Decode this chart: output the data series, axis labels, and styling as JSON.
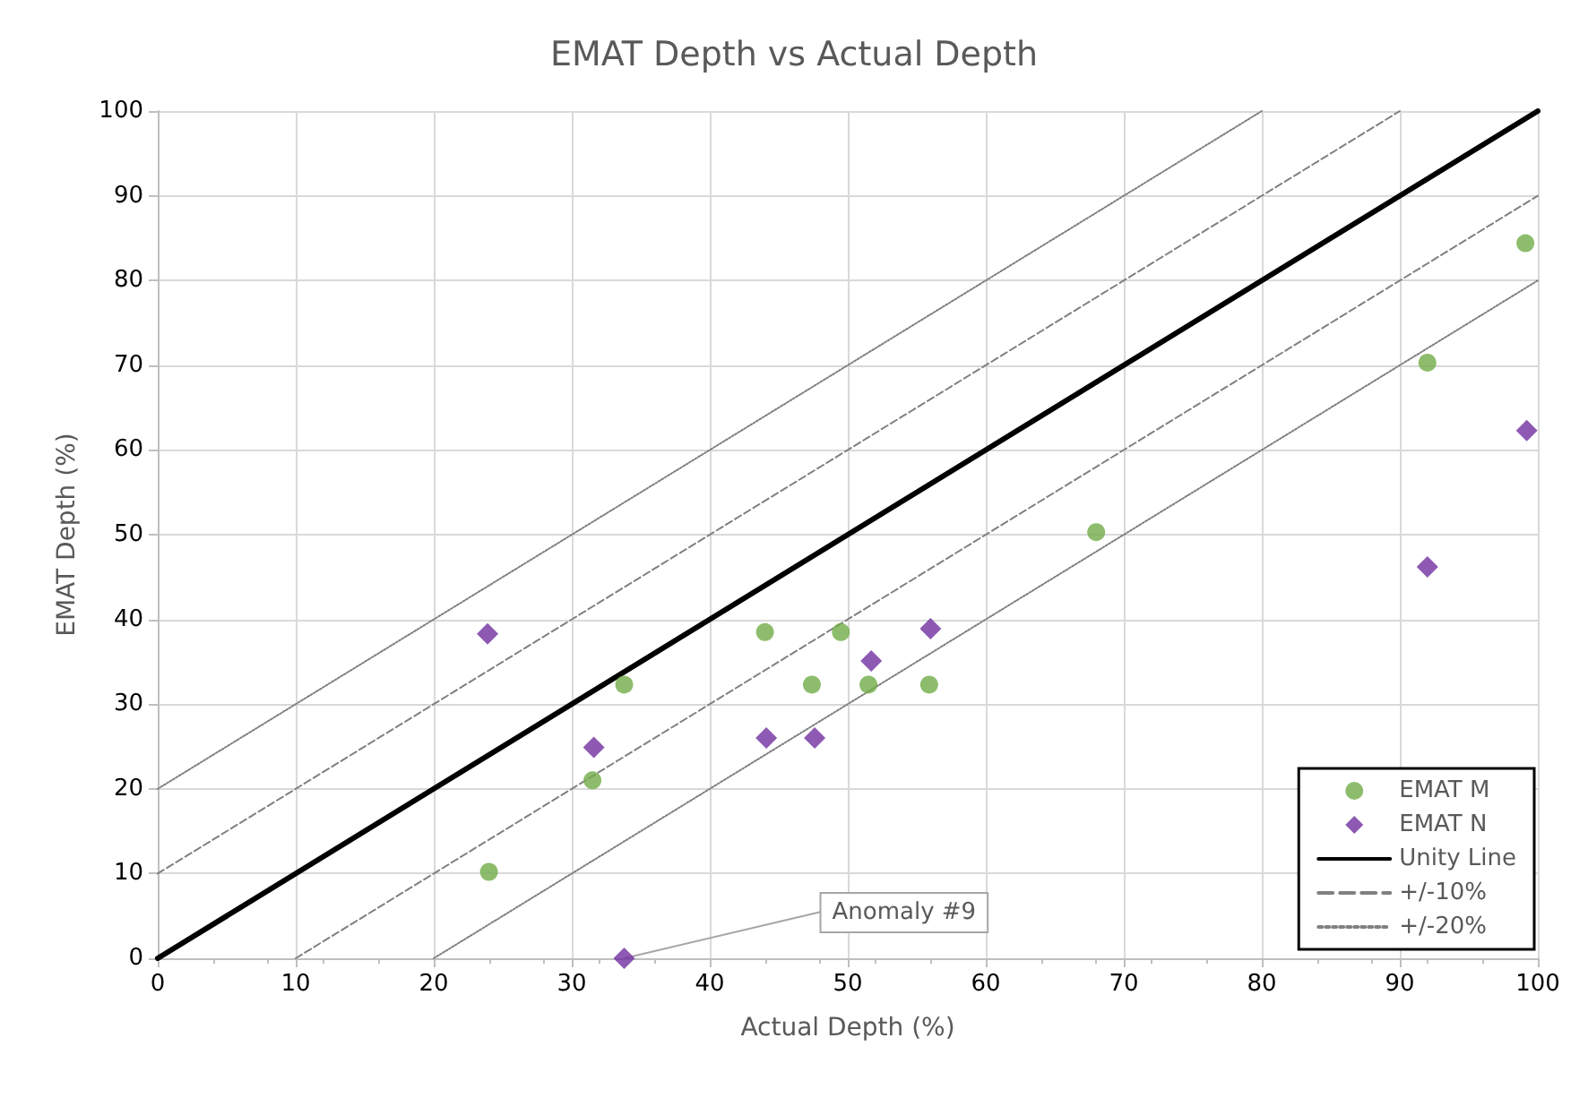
{
  "chart_data": {
    "type": "scatter",
    "title": "EMAT Depth vs Actual Depth",
    "xlabel": "Actual Depth (%)",
    "ylabel": "EMAT Depth (%)",
    "xlim": [
      0,
      100
    ],
    "xticks": [
      0,
      10,
      20,
      30,
      40,
      50,
      60,
      70,
      80,
      90,
      100
    ],
    "ylim": [
      0,
      100
    ],
    "yticks": [
      0,
      10,
      20,
      30,
      40,
      50,
      60,
      70,
      80,
      90,
      100
    ],
    "grid": true,
    "legend": "bottom right",
    "series": [
      {
        "name": "EMAT M",
        "marker": "circle",
        "color": "#70ad47",
        "x": [
          24,
          31.5,
          33.8,
          44,
          47.4,
          49.5,
          51.5,
          55.9,
          68,
          92,
          99.1
        ],
        "values": [
          10.2,
          21,
          32.3,
          38.5,
          32.3,
          38.5,
          32.3,
          32.3,
          50.3,
          70.3,
          84.4
        ]
      },
      {
        "name": "EMAT N",
        "marker": "diamond",
        "color": "#7030a0",
        "x": [
          23.9,
          31.6,
          33.8,
          44.1,
          47.6,
          51.7,
          56,
          92,
          99.2
        ],
        "values": [
          38.3,
          24.9,
          0,
          26,
          26,
          35.1,
          38.9,
          46.2,
          62.3
        ]
      },
      {
        "name": "Unity Line",
        "type": "line",
        "marker": "none",
        "line_style": "solid",
        "color": "#000000",
        "x": [
          0,
          100
        ],
        "values": [
          0,
          100
        ]
      },
      {
        "name": "+/-10%",
        "type": "line",
        "marker": "none",
        "line_style": "dashed",
        "color": "#808080",
        "x": [
          0,
          90
        ],
        "values": [
          10,
          100
        ]
      },
      {
        "type": "line",
        "marker": "none",
        "line_style": "dashed",
        "color": "#808080",
        "x": [
          10,
          100
        ],
        "values": [
          0,
          90
        ]
      },
      {
        "name": "+/-20%",
        "type": "line",
        "marker": "none",
        "line_style": "dotted",
        "color": "#808080",
        "x": [
          0,
          80
        ],
        "values": [
          20,
          100
        ]
      },
      {
        "type": "line",
        "marker": "none",
        "line_style": "dotted",
        "color": "#808080",
        "x": [
          20,
          100
        ],
        "values": [
          0,
          80
        ]
      }
    ],
    "annotations": [
      {
        "text": "Anomaly #9",
        "x": 33.8,
        "y": 0
      }
    ]
  }
}
